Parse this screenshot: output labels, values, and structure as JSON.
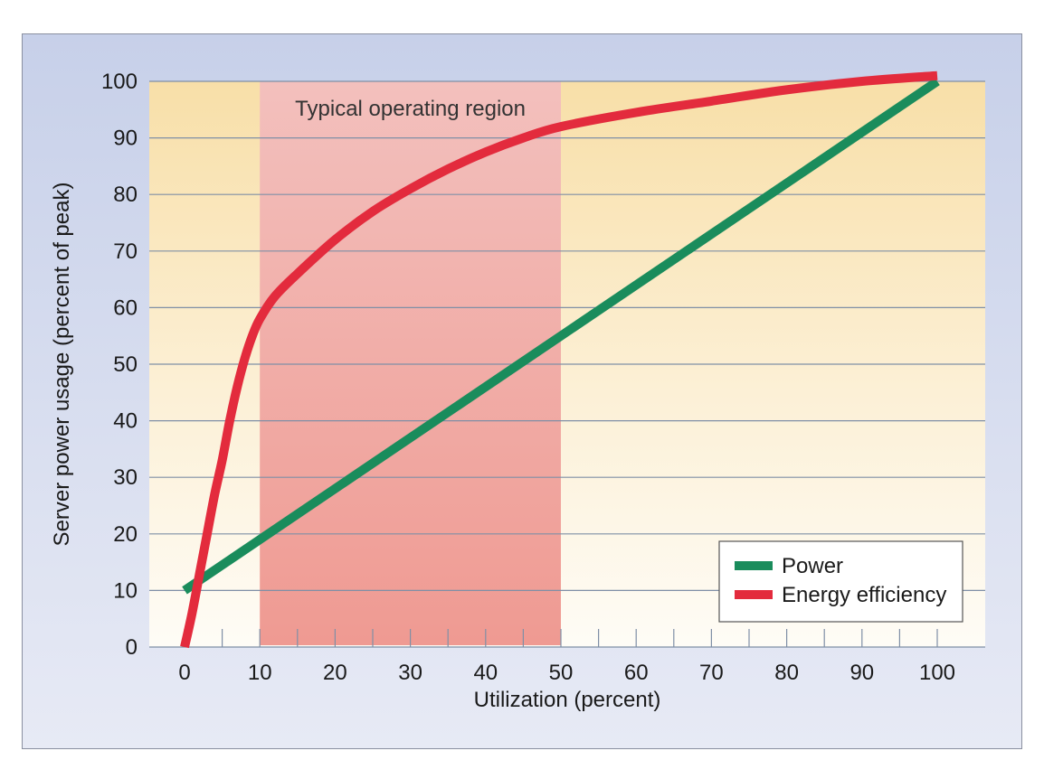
{
  "chart_data": {
    "type": "line",
    "title": "",
    "xlabel": "Utilization (percent)",
    "ylabel": "Server power usage (percent of peak)",
    "xlim": [
      0,
      100
    ],
    "ylim": [
      0,
      100
    ],
    "x_ticks": [
      0,
      10,
      20,
      30,
      40,
      50,
      60,
      70,
      80,
      90,
      100
    ],
    "y_ticks": [
      0,
      10,
      20,
      30,
      40,
      50,
      60,
      70,
      80,
      90,
      100
    ],
    "grid": "horizontal",
    "legend_position": "bottom-right",
    "shaded_region": {
      "label": "Typical operating region",
      "x_start": 10,
      "x_end": 50,
      "color": "#f08c86"
    },
    "series": [
      {
        "name": "Power",
        "color": "#1a8c5c",
        "x": [
          0,
          100
        ],
        "y": [
          10,
          100
        ]
      },
      {
        "name": "Energy efficiency",
        "color": "#e32b3d",
        "x": [
          0,
          1,
          2,
          3,
          4,
          5,
          6,
          7,
          8,
          9,
          10,
          12,
          15,
          20,
          25,
          30,
          35,
          40,
          45,
          50,
          60,
          70,
          80,
          90,
          100
        ],
        "y": [
          0,
          6,
          13,
          20,
          27,
          33,
          40,
          46,
          51,
          55,
          58,
          62,
          66,
          72,
          77,
          81,
          84.5,
          87.5,
          90,
          92,
          94.5,
          96.5,
          98.5,
          100,
          101
        ]
      }
    ]
  }
}
